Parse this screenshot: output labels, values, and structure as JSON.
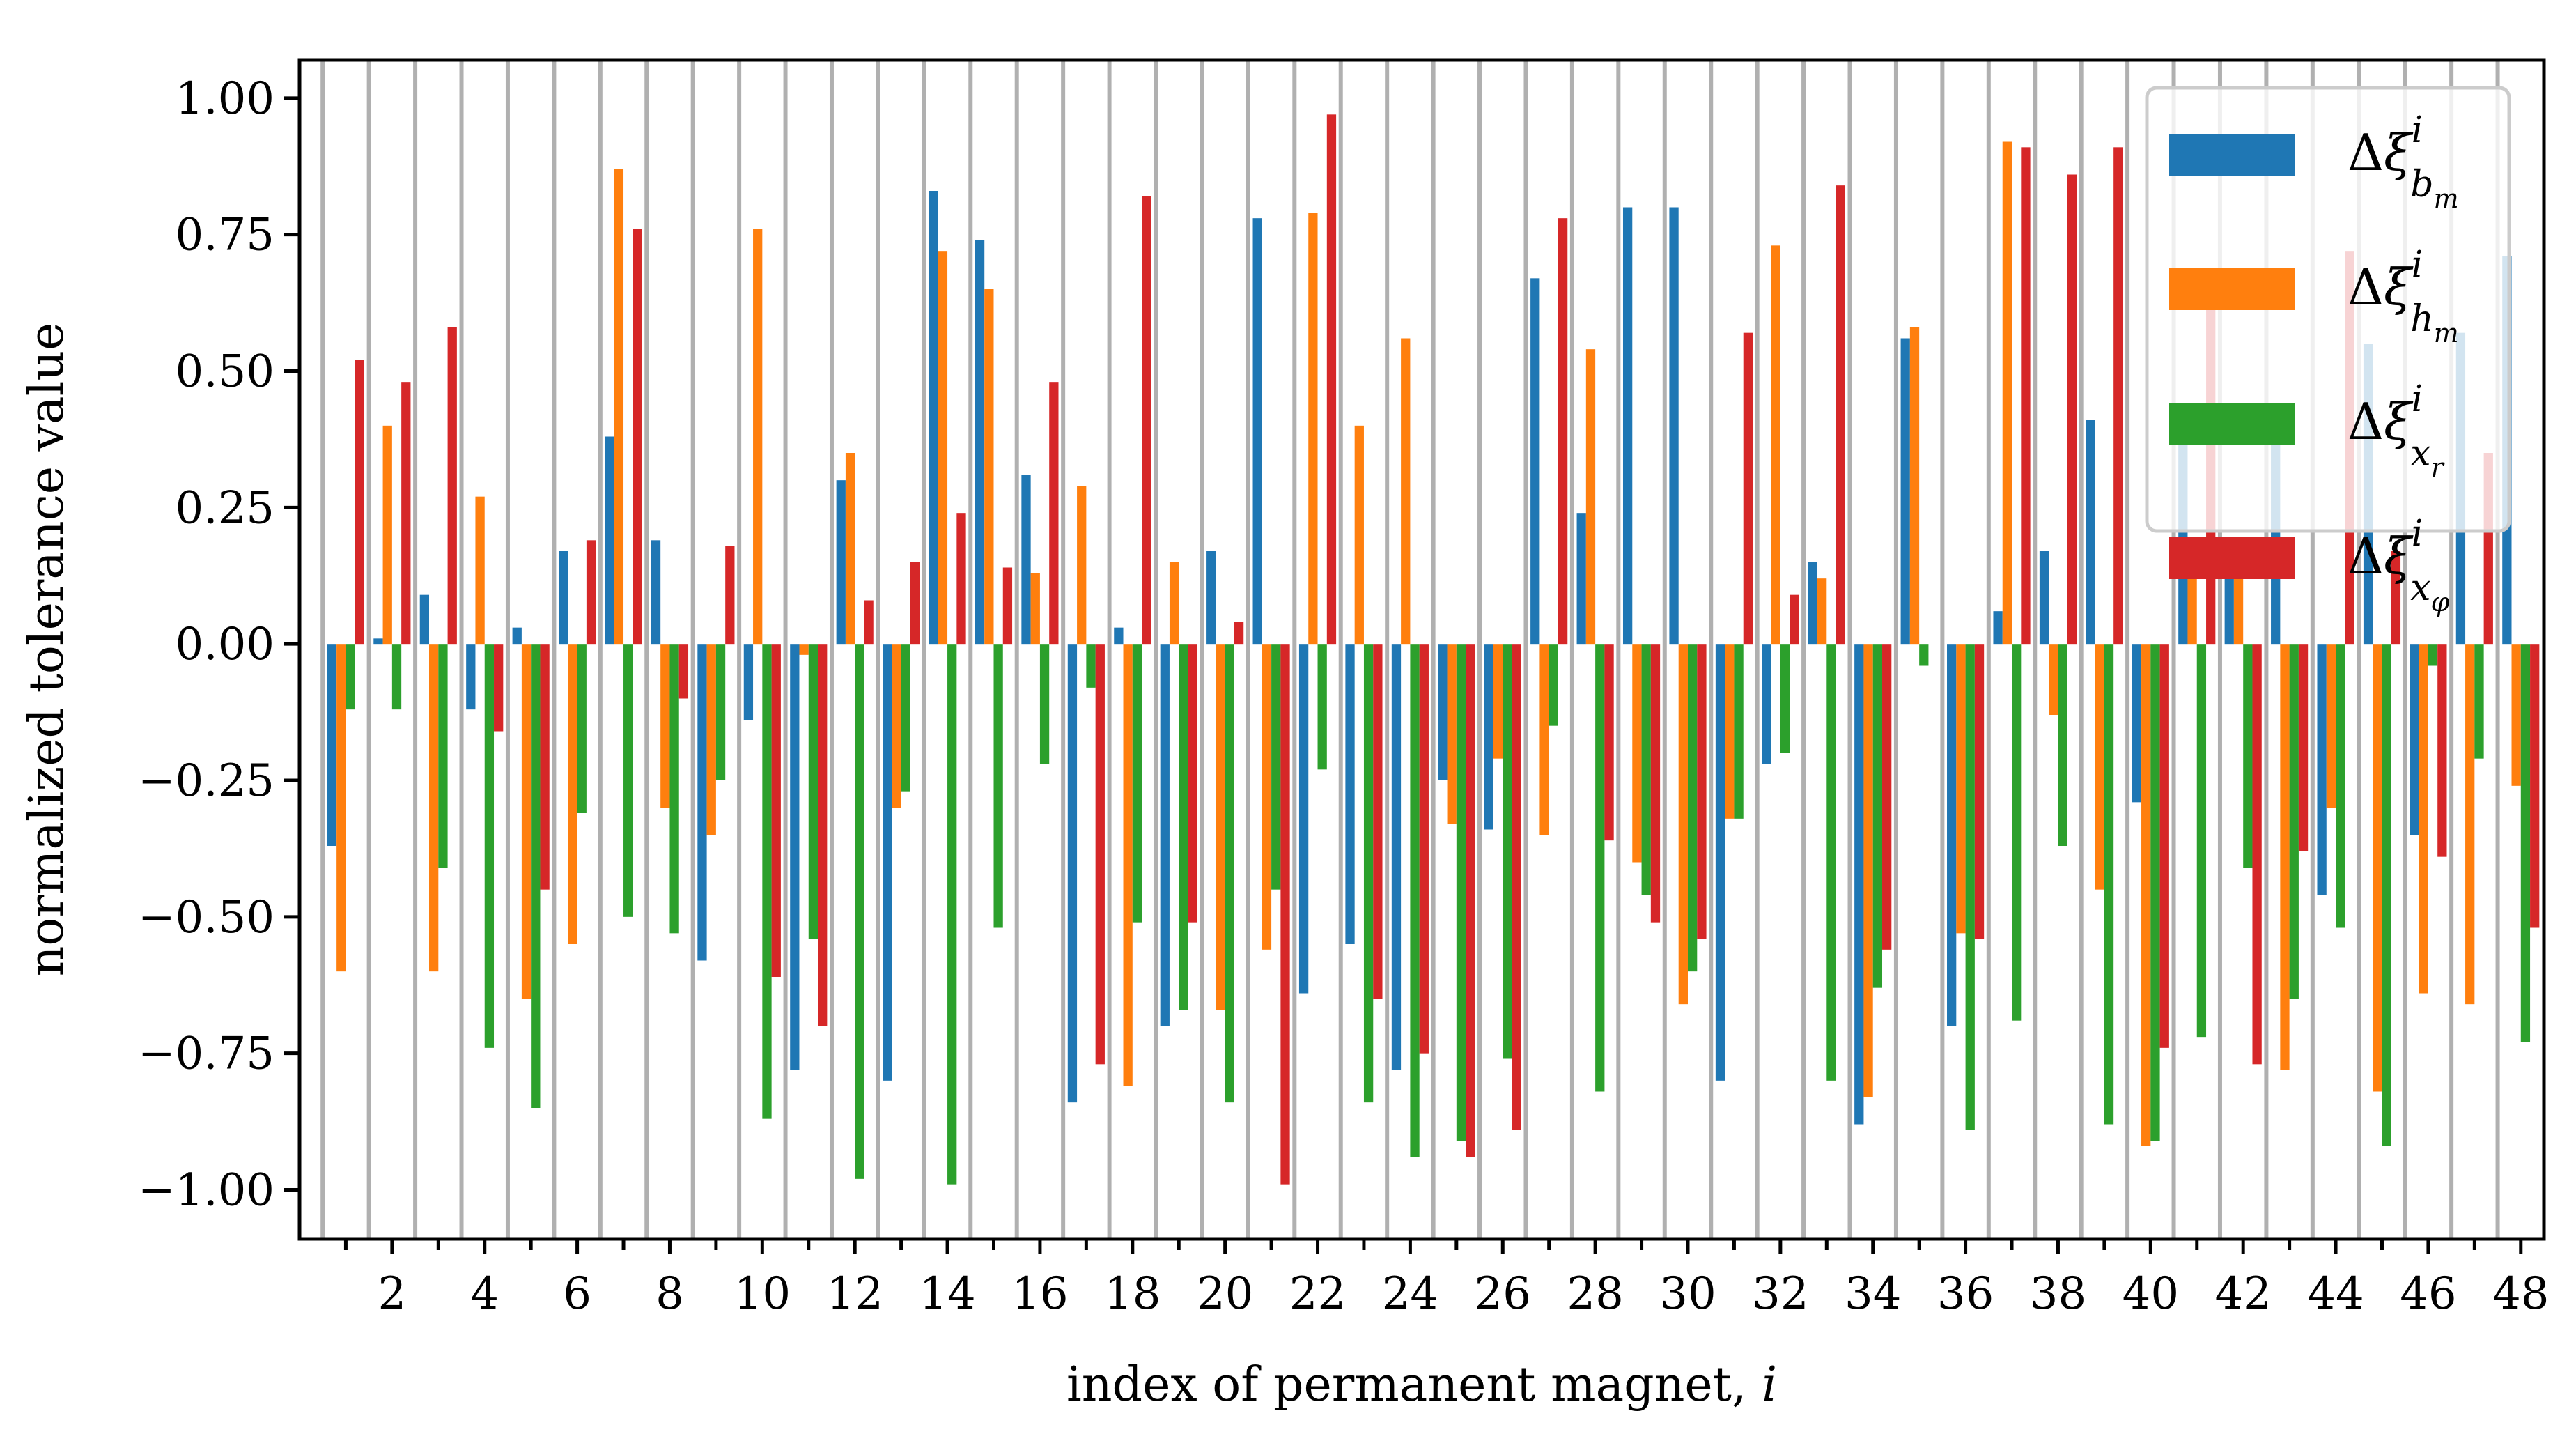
{
  "chart_data": {
    "type": "bar",
    "title": "",
    "xlabel": "index of permanent magnet, i",
    "ylabel": "normalized tolerance value",
    "ylim": [
      -1.09,
      1.07
    ],
    "xlim": [
      0.0,
      48.5
    ],
    "grid": "vertical lines between magnet indices",
    "legend_position": "top-right",
    "categories": [
      1,
      2,
      3,
      4,
      5,
      6,
      7,
      8,
      9,
      10,
      11,
      12,
      13,
      14,
      15,
      16,
      17,
      18,
      19,
      20,
      21,
      22,
      23,
      24,
      25,
      26,
      27,
      28,
      29,
      30,
      31,
      32,
      33,
      34,
      35,
      36,
      37,
      38,
      39,
      40,
      41,
      42,
      43,
      44,
      45,
      46,
      47,
      48
    ],
    "x_tick_labels": [
      "2",
      "4",
      "6",
      "8",
      "10",
      "12",
      "14",
      "16",
      "18",
      "20",
      "22",
      "24",
      "26",
      "28",
      "30",
      "32",
      "34",
      "36",
      "38",
      "40",
      "42",
      "44",
      "46",
      "48"
    ],
    "y_tick_labels": [
      "1.00",
      "0.75",
      "0.50",
      "0.25",
      "0.00",
      "−0.25",
      "−0.50",
      "−0.75",
      "−1.00"
    ],
    "series": [
      {
        "name": "Δξ_{b_m}^i",
        "color": "#1f77b4",
        "values": [
          -0.37,
          0.01,
          0.09,
          -0.12,
          0.03,
          0.17,
          0.38,
          0.19,
          -0.58,
          -0.14,
          -0.78,
          0.3,
          -0.8,
          0.83,
          0.74,
          0.31,
          -0.84,
          0.03,
          -0.7,
          0.17,
          0.78,
          -0.64,
          -0.55,
          -0.78,
          -0.25,
          -0.34,
          0.67,
          0.24,
          0.8,
          0.8,
          -0.8,
          -0.22,
          0.15,
          -0.88,
          0.56,
          -0.7,
          0.06,
          0.17,
          0.41,
          -0.29,
          0.39,
          0.12,
          0.43,
          -0.46,
          0.55,
          -0.35,
          0.57,
          0.71
        ]
      },
      {
        "name": "Δξ_{h_m}^i",
        "color": "#ff7f0e",
        "values": [
          -0.6,
          0.4,
          -0.6,
          0.27,
          -0.65,
          -0.55,
          0.87,
          -0.3,
          -0.35,
          0.76,
          -0.02,
          0.35,
          -0.3,
          0.72,
          0.65,
          0.13,
          0.29,
          -0.81,
          0.15,
          -0.67,
          -0.56,
          0.79,
          0.4,
          0.56,
          -0.33,
          -0.21,
          -0.35,
          0.54,
          -0.4,
          -0.66,
          -0.32,
          0.73,
          0.12,
          -0.83,
          0.58,
          -0.53,
          0.92,
          -0.13,
          -0.45,
          -0.92,
          0.15,
          0.13,
          -0.78,
          -0.3,
          -0.82,
          -0.64,
          -0.66,
          -0.26
        ]
      },
      {
        "name": "Δξ_{x_r}^i",
        "color": "#2ca02c",
        "values": [
          -0.12,
          -0.12,
          -0.41,
          -0.74,
          -0.85,
          -0.31,
          -0.5,
          -0.53,
          -0.25,
          -0.87,
          -0.54,
          -0.98,
          -0.27,
          -0.99,
          -0.52,
          -0.22,
          -0.08,
          -0.51,
          -0.67,
          -0.84,
          -0.45,
          -0.23,
          -0.84,
          -0.94,
          -0.91,
          -0.76,
          -0.15,
          -0.82,
          -0.46,
          -0.6,
          -0.32,
          -0.2,
          -0.8,
          -0.63,
          -0.04,
          -0.89,
          -0.69,
          -0.37,
          -0.88,
          -0.91,
          -0.72,
          -0.41,
          -0.65,
          -0.52,
          -0.92,
          -0.04,
          -0.21,
          -0.73
        ]
      },
      {
        "name": "Δξ_{x_φ}^i",
        "color": "#d62728",
        "values": [
          0.52,
          0.48,
          0.58,
          -0.16,
          -0.45,
          0.19,
          0.76,
          -0.1,
          0.18,
          -0.61,
          -0.7,
          0.08,
          0.15,
          0.24,
          0.14,
          0.48,
          -0.77,
          0.82,
          -0.51,
          0.04,
          -0.99,
          0.97,
          -0.65,
          -0.75,
          -0.94,
          -0.89,
          0.78,
          -0.36,
          -0.51,
          -0.54,
          0.57,
          0.09,
          0.84,
          -0.56,
          0.0,
          -0.54,
          0.91,
          0.86,
          0.91,
          -0.74,
          0.62,
          -0.77,
          -0.38,
          0.72,
          0.17,
          -0.39,
          0.35,
          -0.52
        ]
      }
    ]
  }
}
